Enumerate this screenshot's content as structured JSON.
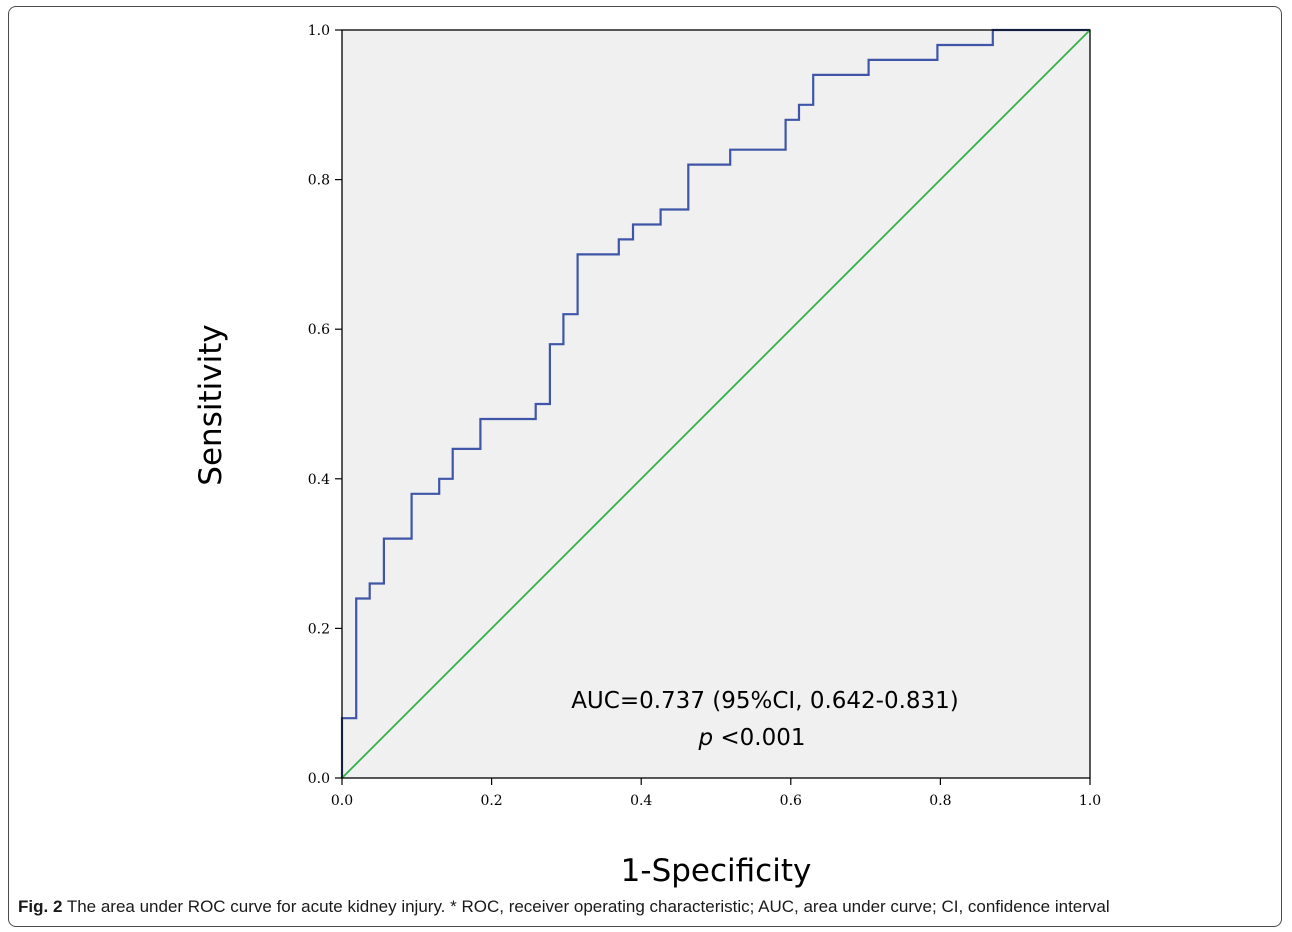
{
  "caption": {
    "label": "Fig. 2",
    "text": "The area under ROC curve for acute kidney injury. * ROC, receiver operating characteristic; AUC, area under curve; CI, confidence interval"
  },
  "chart_data": {
    "type": "line",
    "title": "",
    "xlabel": "1-Specificity",
    "ylabel": "Sensitivity",
    "xlim": [
      0,
      1
    ],
    "ylim": [
      0,
      1
    ],
    "xticks": [
      "0.0",
      "0.2",
      "0.4",
      "0.6",
      "0.8",
      "1.0"
    ],
    "yticks": [
      "0.0",
      "0.2",
      "0.4",
      "0.6",
      "0.8",
      "1.0"
    ],
    "grid": false,
    "background": "#f0f0f0",
    "annotations": [
      "AUC=0.737 (95%CI, 0.642-0.831)",
      "p <0.001"
    ],
    "series": [
      {
        "color": "#3f56a8",
        "step": true,
        "x": [
          0,
          0,
          0.019,
          0.019,
          0.037,
          0.037,
          0.056,
          0.056,
          0.093,
          0.093,
          0.13,
          0.13,
          0.148,
          0.148,
          0.185,
          0.185,
          0.259,
          0.259,
          0.278,
          0.278,
          0.296,
          0.296,
          0.315,
          0.315,
          0.37,
          0.37,
          0.389,
          0.389,
          0.426,
          0.426,
          0.463,
          0.463,
          0.519,
          0.519,
          0.593,
          0.593,
          0.611,
          0.611,
          0.63,
          0.63,
          0.704,
          0.704,
          0.796,
          0.796,
          0.87,
          0.87,
          1.0
        ],
        "y": [
          0,
          0.08,
          0.08,
          0.24,
          0.24,
          0.26,
          0.26,
          0.32,
          0.32,
          0.38,
          0.38,
          0.4,
          0.4,
          0.44,
          0.44,
          0.48,
          0.48,
          0.5,
          0.5,
          0.58,
          0.58,
          0.62,
          0.62,
          0.7,
          0.7,
          0.72,
          0.72,
          0.74,
          0.74,
          0.76,
          0.76,
          0.82,
          0.82,
          0.84,
          0.84,
          0.88,
          0.88,
          0.9,
          0.9,
          0.94,
          0.94,
          0.96,
          0.96,
          0.98,
          0.98,
          1.0,
          1.0
        ]
      },
      {
        "color": "#2fb24a",
        "x": [
          0,
          1
        ],
        "y": [
          0,
          1
        ]
      }
    ]
  }
}
